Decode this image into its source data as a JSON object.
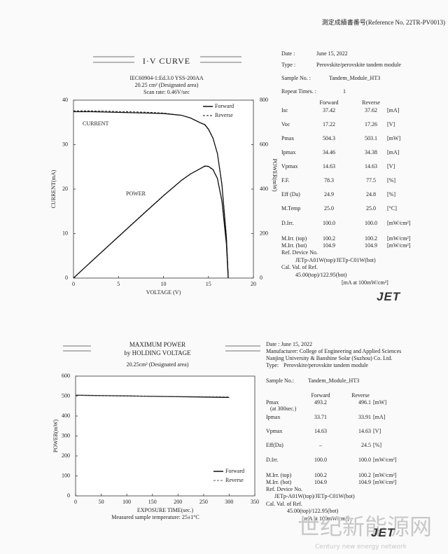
{
  "header": {
    "reference": "測定成績書番号(Reference No. 22TR-PV0013)"
  },
  "section1": {
    "title": "I·V CURVE",
    "conditions": [
      "IEC60904-1:Ed.3.0 YSS-200AA",
      "20.25 cm² (Designated area)",
      "Scan rate: 0.46V/sec"
    ],
    "info": [
      [
        "Date :",
        "June 15, 2022"
      ],
      [
        "Type :",
        "Perovskite/perovskite tandem module"
      ],
      [
        "Sample No. :",
        "Tandem_Module_HT3"
      ],
      [
        "Repeat Times. :",
        "1"
      ]
    ],
    "columns": [
      "Forward",
      "Reverse"
    ],
    "rows": [
      [
        "Isc",
        "37.42",
        "37.62",
        "[mA]"
      ],
      [
        "Voc",
        "17.22",
        "17.26",
        "[V]"
      ],
      [
        "Pmax",
        "504.3",
        "503.1",
        "[mW]"
      ],
      [
        "Ipmax",
        "34.46",
        "34.38",
        "[mA]"
      ],
      [
        "Vpmax",
        "14.63",
        "14.63",
        "[V]"
      ],
      [
        "F.F.",
        "78.3",
        "77.5",
        "[%]"
      ],
      [
        "Eff (Da)",
        "24.9",
        "24.8",
        "[%]"
      ],
      [
        "M.Temp",
        "25.0",
        "25.0",
        "[°C]"
      ],
      [
        "D.Irr.",
        "100.0",
        "100.0",
        "[mW/cm²]"
      ],
      [
        "M.Irr. (top)",
        "100.2",
        "100.2",
        "[mW/cm²]"
      ],
      [
        "M.Irr. (bot)",
        "104.9",
        "104.9",
        "[mW/cm²]"
      ]
    ],
    "ref": [
      "Ref. Device No.",
      "JETp-A01W(top)/JETp-C01W(bot)",
      "Cal. Val. of Ref.",
      "45.00(top)/122.95(bot)",
      "[mA at 100mW/cm²]"
    ],
    "logo": "JET"
  },
  "section2": {
    "title": [
      "MAXIMUM POWER",
      "by HOLDING VOLTAGE"
    ],
    "subtitle": "20.25cm² (Designated area)",
    "caption": "Measured sample temperature: 25±1°C",
    "info": [
      "Date : June 15, 2022",
      "Manufacturer: College of Engineering and Applied Sciences",
      "Nanjing University & Banshine Solar (Suzhou) Co. Ltd."
    ],
    "type": [
      "Type:",
      "Perovskite/perovskite tandem module"
    ],
    "sample": [
      "Sample No.:",
      "Tandem_Module_HT3"
    ],
    "columns": [
      "Forward",
      "Reverse"
    ],
    "pmax_note": "(at 300sec.)",
    "rows": [
      [
        "Pmax",
        "493.2",
        "496.1",
        "[mW]"
      ],
      [
        "Ipmax",
        "33.71",
        "33.91",
        "[mA]"
      ],
      [
        "Vpmax",
        "14.63",
        "14.63",
        "[V]"
      ],
      [
        "Eff(Da)",
        "–",
        "24.5",
        "[%]"
      ],
      [
        "D.Irr.",
        "100.0",
        "100.0",
        "[mW/cm²]"
      ],
      [
        "M.Irr. (top)",
        "100.2",
        "100.2",
        "[mW/cm²]"
      ],
      [
        "M.Irr. (bot)",
        "104.9",
        "104.9",
        "[mW/cm²]"
      ]
    ],
    "ref": [
      "Ref. Device No.",
      "JETp-A01W(top)/JETp-C01W(bot)",
      "Cal. Val. of Ref.",
      "45.00(top)/122.95(bot)",
      "[mA at 100mW/cm²]"
    ],
    "logo": "JET"
  },
  "watermark": [
    "世纪新能源网",
    "Century new energy network"
  ],
  "chart_data": [
    {
      "type": "line",
      "x_label": "VOLTAGE (V)",
      "y_label": "CURRENT(mA)",
      "y2_label": "POWER(mW)",
      "annotations": [
        "CURRENT",
        "POWER"
      ],
      "x": [
        0,
        2,
        4,
        6,
        8,
        10,
        12,
        13,
        14,
        14.6,
        15,
        15.5,
        16,
        16.5,
        17,
        17.2
      ],
      "series": [
        {
          "name": "Forward",
          "color": "#111111",
          "line_style": "solid",
          "values": [
            37.4,
            37.4,
            37.3,
            37.2,
            37.1,
            37.0,
            36.6,
            36.0,
            35.0,
            34.5,
            33.5,
            31.5,
            28.0,
            21.0,
            9.0,
            0
          ]
        },
        {
          "name": "Reverse",
          "color": "#111111",
          "line_style": "dashed",
          "values": [
            37.6,
            37.6,
            37.5,
            37.4,
            37.3,
            37.1,
            36.6,
            36.0,
            35.0,
            34.4,
            33.4,
            31.4,
            28.0,
            21.2,
            9.5,
            1.0
          ]
        },
        {
          "color": "#111111",
          "line_style": "solid",
          "axis": "y2",
          "values": [
            0,
            74.8,
            149.2,
            223.2,
            296.8,
            370,
            439.2,
            468,
            490,
            503.7,
            502.5,
            488.3,
            448,
            346.5,
            153,
            0
          ]
        },
        {
          "color": "#111111",
          "line_style": "dashed",
          "axis": "y2",
          "values": [
            0,
            75.2,
            150,
            224.4,
            298.4,
            371,
            439.2,
            468,
            490,
            502.2,
            501,
            486.7,
            448,
            349.8,
            161.5,
            17.2
          ]
        }
      ],
      "xlim": [
        0,
        20
      ],
      "xticks": [
        0,
        5,
        10,
        15,
        20
      ],
      "ylim": [
        0,
        40
      ],
      "yticks": [
        0,
        10,
        20,
        30,
        40
      ],
      "y2lim": [
        0,
        800
      ],
      "y2ticks": [
        0,
        200,
        400,
        600,
        800
      ],
      "legend": "upper right",
      "grid": false
    },
    {
      "type": "line",
      "x_label": "EXPOSURE TIME(sec.)",
      "y_label": "POWER(mW)",
      "x": [
        0,
        50,
        100,
        150,
        200,
        250,
        300
      ],
      "series": [
        {
          "name": "Forward",
          "color": "#111111",
          "line_style": "solid",
          "values": [
            504.3,
            502.5,
            500.6,
            498.8,
            496.9,
            495.0,
            493.2
          ]
        },
        {
          "name": "Reverse",
          "color": "#555555",
          "line_style": "dashed",
          "values": [
            503.1,
            502.0,
            500.8,
            499.6,
            498.4,
            497.3,
            496.1
          ]
        }
      ],
      "xlim": [
        0,
        350
      ],
      "xticks": [
        0,
        50,
        100,
        150,
        200,
        250,
        300,
        350
      ],
      "ylim": [
        0,
        600
      ],
      "yticks": [
        0,
        100,
        200,
        300,
        400,
        500,
        600
      ],
      "legend": "lower right",
      "grid": false
    }
  ]
}
